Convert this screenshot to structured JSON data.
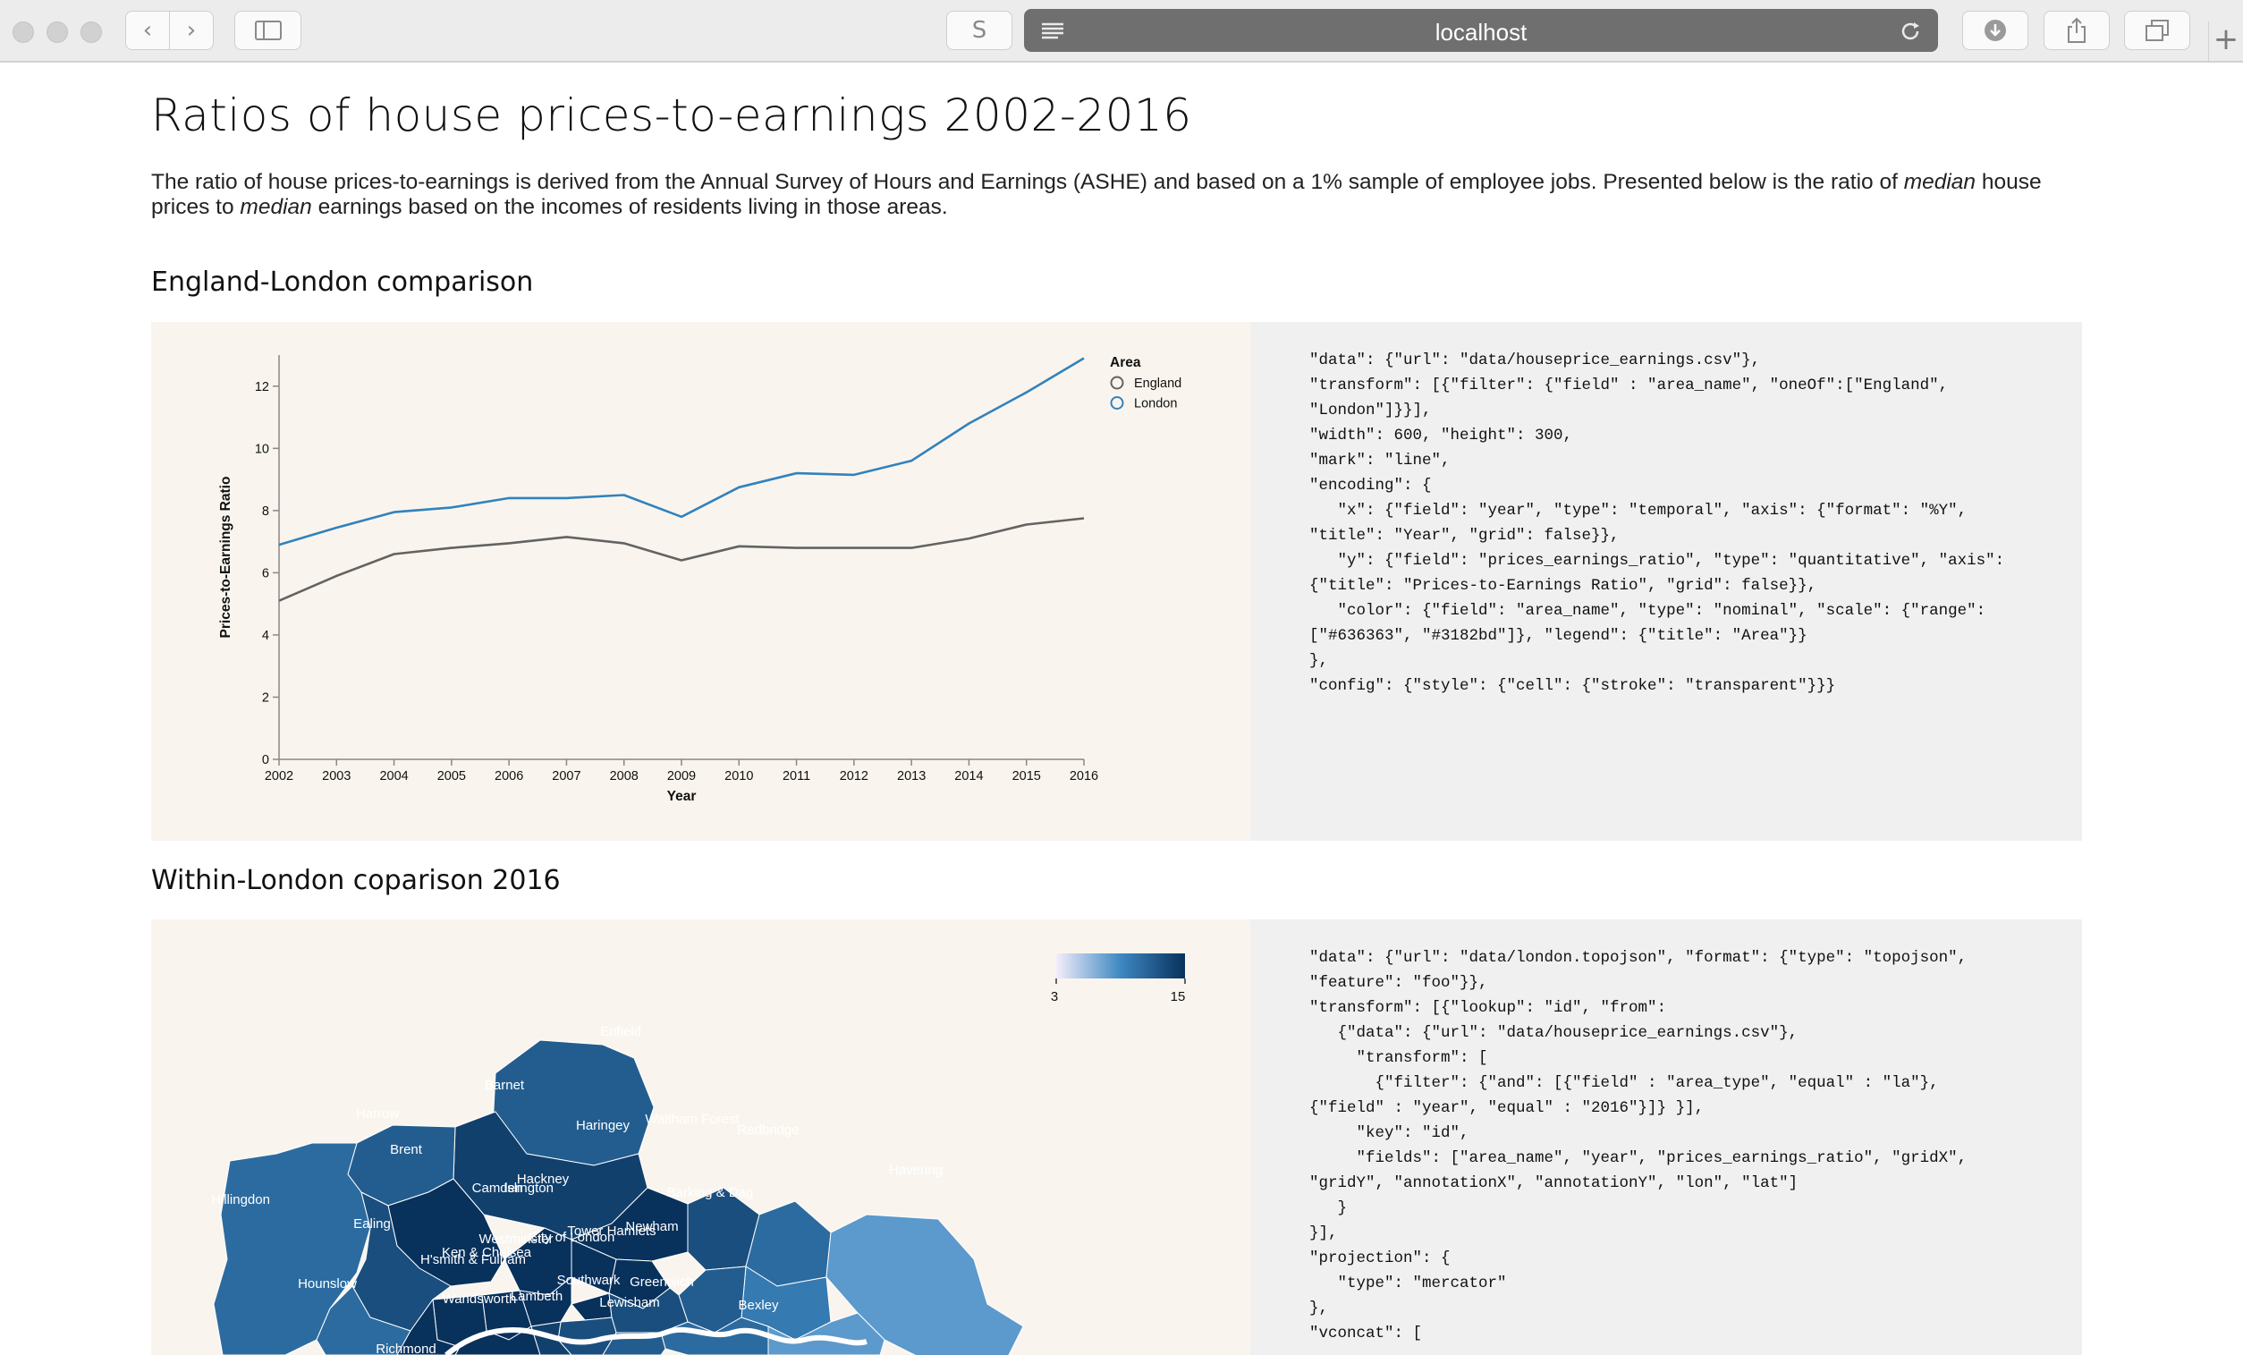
{
  "browser": {
    "url": "localhost",
    "reader_label": "S"
  },
  "page": {
    "title": "Ratios of house prices-to-earnings 2002-2016",
    "desc_part1": "The ratio of house prices-to-earnings is derived from the Annual Survey of Hours and Earnings (ASHE) and based on a 1% sample of employee jobs. Presented below is the ratio of ",
    "desc_em1": "median",
    "desc_part2": " house prices to ",
    "desc_em2": "median",
    "desc_part3": " earnings based on the incomes of residents living in those areas."
  },
  "section1": {
    "heading": "England-London comparison",
    "code": "\"data\": {\"url\": \"data/houseprice_earnings.csv\"},\n\"transform\": [{\"filter\": {\"field\" : \"area_name\", \"oneOf\":[\"England\",\n\"London\"]}}],\n\"width\": 600, \"height\": 300,\n\"mark\": \"line\",\n\"encoding\": {\n   \"x\": {\"field\": \"year\", \"type\": \"temporal\", \"axis\": {\"format\": \"%Y\",\n\"title\": \"Year\", \"grid\": false}},\n   \"y\": {\"field\": \"prices_earnings_ratio\", \"type\": \"quantitative\", \"axis\":\n{\"title\": \"Prices-to-Earnings Ratio\", \"grid\": false}},\n   \"color\": {\"field\": \"area_name\", \"type\": \"nominal\", \"scale\": {\"range\":\n[\"#636363\", \"#3182bd\"]}, \"legend\": {\"title\": \"Area\"}}\n},\n\"config\": {\"style\": {\"cell\": {\"stroke\": \"transparent\"}}}"
  },
  "section2": {
    "heading": "Within-London coparison 2016",
    "code": "\"data\": {\"url\": \"data/london.topojson\", \"format\": {\"type\": \"topojson\",\n\"feature\": \"foo\"}},\n\"transform\": [{\"lookup\": \"id\", \"from\":\n   {\"data\": {\"url\": \"data/houseprice_earnings.csv\"},\n     \"transform\": [\n       {\"filter\": {\"and\": [{\"field\" : \"area_type\", \"equal\" : \"la\"},\n{\"field\" : \"year\", \"equal\" : \"2016\"}]} }],\n     \"key\": \"id\",\n     \"fields\": [\"area_name\", \"year\", \"prices_earnings_ratio\", \"gridX\",\n\"gridY\", \"annotationX\", \"annotationY\", \"lon\", \"lat\"]\n   }\n}],\n\"projection\": {\n   \"type\": \"mercator\"\n},\n\"vconcat\": [",
    "legend_min": "3",
    "legend_max": "15",
    "boroughs": [
      {
        "name": "Enfield",
        "ratio": 12
      },
      {
        "name": "Barnet",
        "ratio": 14
      },
      {
        "name": "Harrow",
        "ratio": 12
      },
      {
        "name": "Haringey",
        "ratio": 15
      },
      {
        "name": "Waltham Forest",
        "ratio": 13
      },
      {
        "name": "Redbridge",
        "ratio": 11
      },
      {
        "name": "Havering",
        "ratio": 8
      },
      {
        "name": "Brent",
        "ratio": 15
      },
      {
        "name": "Camden",
        "ratio": 15
      },
      {
        "name": "Islington",
        "ratio": 15
      },
      {
        "name": "Hackney",
        "ratio": 15
      },
      {
        "name": "Barking & Dag",
        "ratio": 10
      },
      {
        "name": "Hillingdon",
        "ratio": 11
      },
      {
        "name": "Ealing",
        "ratio": 13
      },
      {
        "name": "Newham",
        "ratio": 12
      },
      {
        "name": "Westminster",
        "ratio": 15
      },
      {
        "name": "City of London",
        "ratio": 15
      },
      {
        "name": "Tower Hamlets",
        "ratio": 13
      },
      {
        "name": "Ken & Chelsea",
        "ratio": 15
      },
      {
        "name": "H'smith & Fulham",
        "ratio": 15
      },
      {
        "name": "Southwark",
        "ratio": 13
      },
      {
        "name": "Greenwich",
        "ratio": 11
      },
      {
        "name": "Hounslow",
        "ratio": 11
      },
      {
        "name": "Bexley",
        "ratio": 8
      },
      {
        "name": "Wandsworth",
        "ratio": 15
      },
      {
        "name": "Lambeth",
        "ratio": 14
      },
      {
        "name": "Lewisham",
        "ratio": 12
      },
      {
        "name": "Richmond",
        "ratio": 15
      }
    ]
  },
  "chart_data": {
    "type": "line",
    "title": "",
    "xlabel": "Year",
    "ylabel": "Prices-to-Earnings Ratio",
    "x": [
      "2002",
      "2003",
      "2004",
      "2005",
      "2006",
      "2007",
      "2008",
      "2009",
      "2010",
      "2011",
      "2012",
      "2013",
      "2014",
      "2015",
      "2016"
    ],
    "ylim": [
      0,
      13
    ],
    "yticks": [
      "0",
      "2",
      "4",
      "6",
      "8",
      "10",
      "12"
    ],
    "legend_title": "Area",
    "legend_position": "top-right",
    "grid": false,
    "series": [
      {
        "name": "England",
        "color": "#636363",
        "values": [
          5.1,
          5.9,
          6.6,
          6.8,
          6.95,
          7.15,
          6.95,
          6.4,
          6.85,
          6.8,
          6.8,
          6.8,
          7.1,
          7.55,
          7.75
        ]
      },
      {
        "name": "London",
        "color": "#3182bd",
        "values": [
          6.9,
          7.45,
          7.95,
          8.1,
          8.4,
          8.4,
          8.5,
          7.8,
          8.75,
          9.2,
          9.15,
          9.6,
          10.8,
          11.8,
          12.9
        ]
      }
    ]
  }
}
